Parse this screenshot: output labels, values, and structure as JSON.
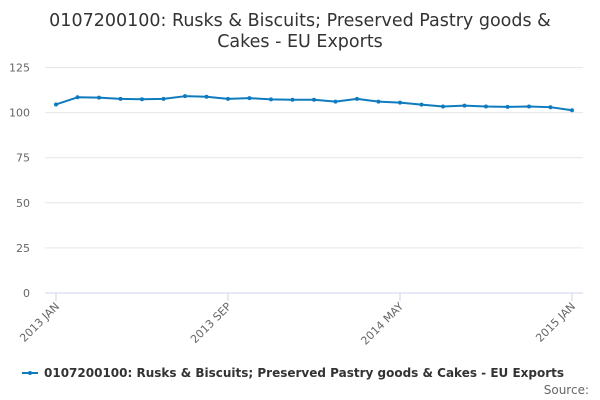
{
  "chart_data": {
    "type": "line",
    "title_line1": "0107200100: Rusks & Biscuits; Preserved Pastry goods &",
    "title_line2": "Cakes - EU Exports",
    "ylim": [
      0,
      125
    ],
    "yticks": [
      0,
      25,
      50,
      75,
      100,
      125
    ],
    "x": [
      "2013 JAN",
      "2013 FEB",
      "2013 MAR",
      "2013 APR",
      "2013 MAY",
      "2013 JUN",
      "2013 JUL",
      "2013 AUG",
      "2013 SEP",
      "2013 OCT",
      "2013 NOV",
      "2013 DEC",
      "2014 JAN",
      "2014 FEB",
      "2014 MAR",
      "2014 APR",
      "2014 MAY",
      "2014 JUN",
      "2014 JUL",
      "2014 AUG",
      "2014 SEP",
      "2014 OCT",
      "2014 NOV",
      "2014 DEC",
      "2015 JAN"
    ],
    "xtick_labels": [
      "2013 JAN",
      "2013 SEP",
      "2014 MAY",
      "2015 JAN"
    ],
    "series": [
      {
        "name": "0107200100: Rusks & Biscuits; Preserved Pastry goods & Cakes - EU Exports",
        "color": "#0f7bbf",
        "values": [
          104.5,
          108.5,
          108.3,
          107.6,
          107.4,
          107.6,
          109.1,
          108.8,
          107.6,
          108.0,
          107.3,
          107.1,
          107.1,
          106.1,
          107.6,
          106.1,
          105.5,
          104.4,
          103.4,
          103.9,
          103.4,
          103.2,
          103.4,
          103.0,
          101.3
        ]
      }
    ],
    "grid": true,
    "legend_position": "bottom",
    "source_label": "Source:"
  }
}
